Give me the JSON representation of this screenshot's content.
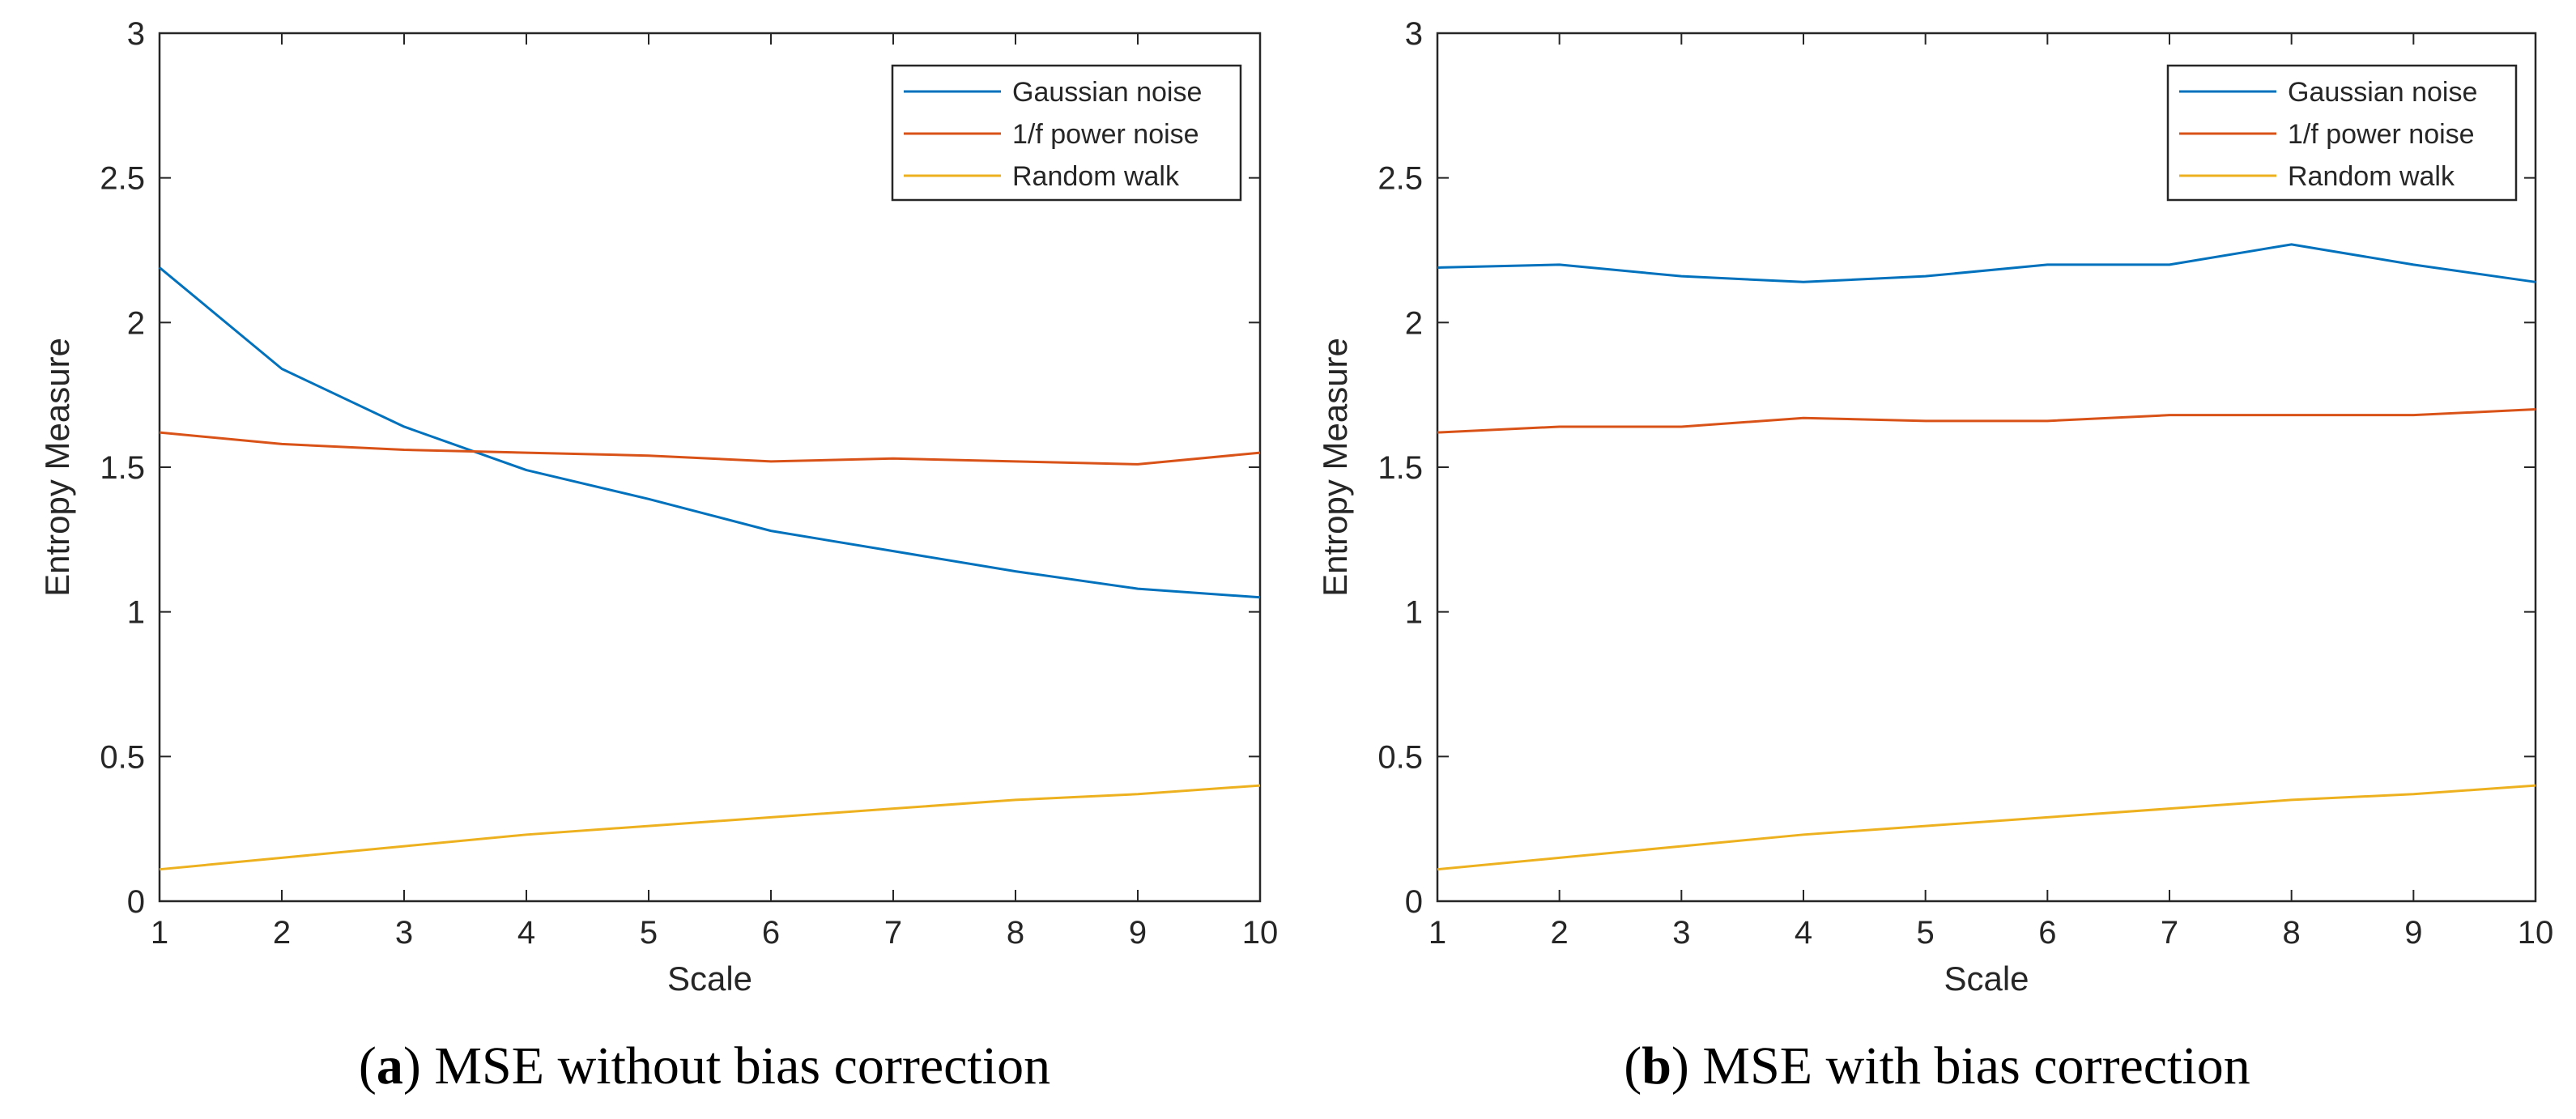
{
  "colors": {
    "gaussian": "#0072BD",
    "pink": "#D95319",
    "random_walk": "#EDB120",
    "axes": "#262626"
  },
  "legend": [
    "Gaussian noise",
    "1/f power noise",
    "Random walk"
  ],
  "chart_data": [
    {
      "type": "line",
      "caption_letter": "a",
      "caption_text": "MSE without bias correction",
      "xlabel": "Scale",
      "ylabel": "Entropy Measure",
      "xlim": [
        1,
        10
      ],
      "ylim": [
        0,
        3
      ],
      "xticks": [
        1,
        2,
        3,
        4,
        5,
        6,
        7,
        8,
        9,
        10
      ],
      "yticks": [
        0,
        0.5,
        1,
        1.5,
        2,
        2.5,
        3
      ],
      "yticklabels": [
        "0",
        "0.5",
        "1",
        "1.5",
        "2",
        "2.5",
        "3"
      ],
      "legend_position": "top-right",
      "x": [
        1,
        2,
        3,
        4,
        5,
        6,
        7,
        8,
        9,
        10
      ],
      "series": [
        {
          "name": "Gaussian noise",
          "color_key": "gaussian",
          "values": [
            2.19,
            1.84,
            1.64,
            1.49,
            1.39,
            1.28,
            1.21,
            1.14,
            1.08,
            1.05
          ]
        },
        {
          "name": "1/f power noise",
          "color_key": "pink",
          "values": [
            1.62,
            1.58,
            1.56,
            1.55,
            1.54,
            1.52,
            1.53,
            1.52,
            1.51,
            1.55
          ]
        },
        {
          "name": "Random walk",
          "color_key": "random_walk",
          "values": [
            0.11,
            0.15,
            0.19,
            0.23,
            0.26,
            0.29,
            0.32,
            0.35,
            0.37,
            0.4
          ]
        }
      ]
    },
    {
      "type": "line",
      "caption_letter": "b",
      "caption_text": "MSE with bias correction",
      "xlabel": "Scale",
      "ylabel": "Entropy Measure",
      "xlim": [
        1,
        10
      ],
      "ylim": [
        0,
        3
      ],
      "xticks": [
        1,
        2,
        3,
        4,
        5,
        6,
        7,
        8,
        9,
        10
      ],
      "yticks": [
        0,
        0.5,
        1,
        1.5,
        2,
        2.5,
        3
      ],
      "yticklabels": [
        "0",
        "0.5",
        "1",
        "1.5",
        "2",
        "2.5",
        "3"
      ],
      "legend_position": "top-right",
      "x": [
        1,
        2,
        3,
        4,
        5,
        6,
        7,
        8,
        9,
        10
      ],
      "series": [
        {
          "name": "Gaussian noise",
          "color_key": "gaussian",
          "values": [
            2.19,
            2.2,
            2.16,
            2.14,
            2.16,
            2.2,
            2.2,
            2.27,
            2.2,
            2.14
          ]
        },
        {
          "name": "1/f power noise",
          "color_key": "pink",
          "values": [
            1.62,
            1.64,
            1.64,
            1.67,
            1.66,
            1.66,
            1.68,
            1.68,
            1.68,
            1.7
          ]
        },
        {
          "name": "Random walk",
          "color_key": "random_walk",
          "values": [
            0.11,
            0.15,
            0.19,
            0.23,
            0.26,
            0.29,
            0.32,
            0.35,
            0.37,
            0.4
          ]
        }
      ]
    }
  ]
}
